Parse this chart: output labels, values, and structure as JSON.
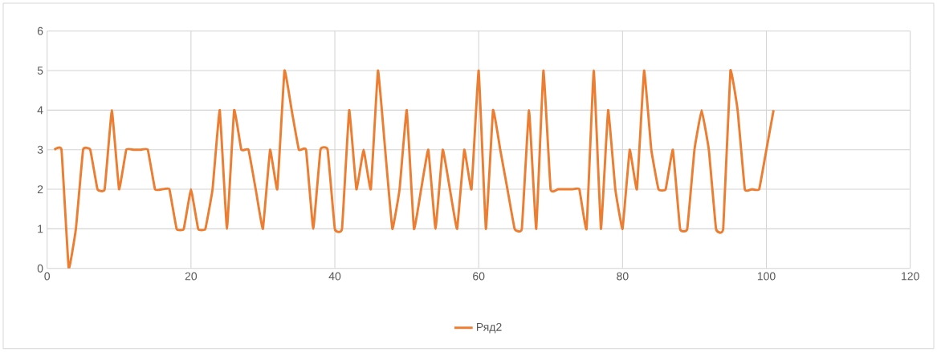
{
  "chart_data": {
    "type": "line",
    "x": [
      1,
      2,
      3,
      4,
      5,
      6,
      7,
      8,
      9,
      10,
      11,
      12,
      13,
      14,
      15,
      16,
      17,
      18,
      19,
      20,
      21,
      22,
      23,
      24,
      25,
      26,
      27,
      28,
      29,
      30,
      31,
      32,
      33,
      34,
      35,
      36,
      37,
      38,
      39,
      40,
      41,
      42,
      43,
      44,
      45,
      46,
      47,
      48,
      49,
      50,
      51,
      52,
      53,
      54,
      55,
      56,
      57,
      58,
      59,
      60,
      61,
      62,
      63,
      64,
      65,
      66,
      67,
      68,
      69,
      70,
      71,
      72,
      73,
      74,
      75,
      76,
      77,
      78,
      79,
      80,
      81,
      82,
      83,
      84,
      85,
      86,
      87,
      88,
      89,
      90,
      91,
      92,
      93,
      94,
      95,
      96,
      97,
      98,
      99,
      100,
      101
    ],
    "series": [
      {
        "name": "Ряд2",
        "color": "#ed7d31",
        "values": [
          3,
          3,
          0,
          1,
          3,
          3,
          2,
          2,
          4,
          2,
          3,
          3,
          3,
          3,
          2,
          2,
          2,
          1,
          1,
          2,
          1,
          1,
          2,
          4,
          1,
          4,
          3,
          3,
          2,
          1,
          3,
          2,
          5,
          4,
          3,
          3,
          1,
          3,
          3,
          1,
          1,
          4,
          2,
          3,
          2,
          5,
          3,
          1,
          2,
          4,
          1,
          2,
          3,
          1,
          3,
          2,
          1,
          3,
          2,
          5,
          1,
          4,
          3,
          2,
          1,
          1,
          4,
          1,
          5,
          2,
          2,
          2,
          2,
          2,
          1,
          5,
          1,
          4,
          2,
          1,
          3,
          2,
          5,
          3,
          2,
          2,
          3,
          1,
          1,
          3,
          4,
          3,
          1,
          1,
          5,
          4,
          2,
          2,
          2,
          3,
          4
        ]
      }
    ],
    "xlim": [
      0,
      120
    ],
    "ylim": [
      0,
      6
    ],
    "xticks": [
      0,
      20,
      40,
      60,
      80,
      100,
      120
    ],
    "yticks": [
      0,
      1,
      2,
      3,
      4,
      5,
      6
    ],
    "grid": true,
    "legend": "bottom",
    "marker": "none",
    "line_style": "solid"
  }
}
